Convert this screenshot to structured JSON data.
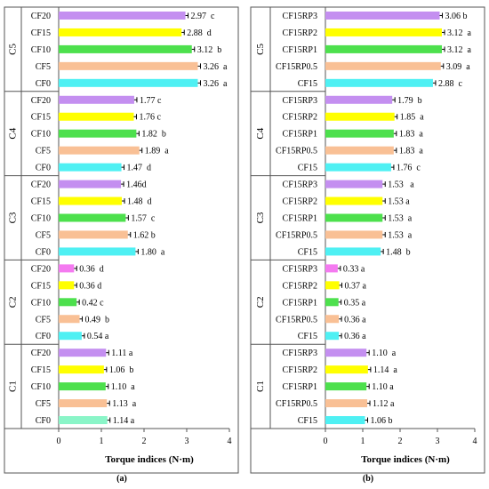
{
  "chart_data": [
    {
      "type": "bar",
      "orientation": "horizontal",
      "panel_label": "(a)",
      "xlabel": "Torque indices (N·m)",
      "xlim": [
        0,
        4
      ],
      "xticks": [
        "0",
        "1",
        "2",
        "3",
        "4"
      ],
      "groups": [
        "C5",
        "C4",
        "C3",
        "C2",
        "C1"
      ],
      "bars": [
        {
          "group": "C5",
          "category": "CF20",
          "value": 2.97,
          "label": "2.97  c",
          "color": "#c48ff0"
        },
        {
          "group": "C5",
          "category": "CF15",
          "value": 2.88,
          "label": "2.88  d",
          "color": "#ffff00"
        },
        {
          "group": "C5",
          "category": "CF10",
          "value": 3.12,
          "label": "3.12  b",
          "color": "#4de04d"
        },
        {
          "group": "C5",
          "category": "CF5",
          "value": 3.26,
          "label": "3.26  a",
          "color": "#f9c095"
        },
        {
          "group": "C5",
          "category": "CF0",
          "value": 3.26,
          "label": "3.26  a",
          "color": "#4ff0f3"
        },
        {
          "group": "C4",
          "category": "CF20",
          "value": 1.77,
          "label": "1.77 c",
          "color": "#c48ff0"
        },
        {
          "group": "C4",
          "category": "CF15",
          "value": 1.76,
          "label": "1.76 c",
          "color": "#ffff00"
        },
        {
          "group": "C4",
          "category": "CF10",
          "value": 1.82,
          "label": "1.82  b",
          "color": "#4de04d"
        },
        {
          "group": "C4",
          "category": "CF5",
          "value": 1.89,
          "label": "1.89  a",
          "color": "#f9c095"
        },
        {
          "group": "C4",
          "category": "CF0",
          "value": 1.47,
          "label": "1.47  d",
          "color": "#4ff0f3"
        },
        {
          "group": "C3",
          "category": "CF20",
          "value": 1.46,
          "label": "1.46d",
          "color": "#c48ff0"
        },
        {
          "group": "C3",
          "category": "CF15",
          "value": 1.48,
          "label": "1.48  d",
          "color": "#ffff00"
        },
        {
          "group": "C3",
          "category": "CF10",
          "value": 1.57,
          "label": "1.57  c",
          "color": "#4de04d"
        },
        {
          "group": "C3",
          "category": "CF5",
          "value": 1.62,
          "label": "1.62 b",
          "color": "#f9c095"
        },
        {
          "group": "C3",
          "category": "CF0",
          "value": 1.8,
          "label": "1.80  a",
          "color": "#4ff0f3"
        },
        {
          "group": "C2",
          "category": "CF20",
          "value": 0.36,
          "label": "0.36  d",
          "color": "#f47af0"
        },
        {
          "group": "C2",
          "category": "CF15",
          "value": 0.36,
          "label": "0.36 d",
          "color": "#ffff00"
        },
        {
          "group": "C2",
          "category": "CF10",
          "value": 0.42,
          "label": "0.42 c",
          "color": "#4de04d"
        },
        {
          "group": "C2",
          "category": "CF5",
          "value": 0.49,
          "label": "0.49  b",
          "color": "#f9c095"
        },
        {
          "group": "C2",
          "category": "CF0",
          "value": 0.54,
          "label": "0.54 a",
          "color": "#4ff0f3"
        },
        {
          "group": "C1",
          "category": "CF20",
          "value": 1.11,
          "label": "1.11 a",
          "color": "#c48ff0"
        },
        {
          "group": "C1",
          "category": "CF15",
          "value": 1.06,
          "label": "1.06  b",
          "color": "#ffff00"
        },
        {
          "group": "C1",
          "category": "CF10",
          "value": 1.1,
          "label": "1.10  a",
          "color": "#4de04d"
        },
        {
          "group": "C1",
          "category": "CF5",
          "value": 1.13,
          "label": "1.13  a",
          "color": "#f9c095"
        },
        {
          "group": "C1",
          "category": "CF0",
          "value": 1.14,
          "label": "1.14 a",
          "color": "#8af5c8"
        }
      ]
    },
    {
      "type": "bar",
      "orientation": "horizontal",
      "panel_label": "(b)",
      "xlabel": "Torque indices (N·m)",
      "xlim": [
        0,
        4
      ],
      "xticks": [
        "0",
        "1",
        "2",
        "3",
        "4"
      ],
      "groups": [
        "C5",
        "C4",
        "C3",
        "C2",
        "C1"
      ],
      "bars": [
        {
          "group": "C5",
          "category": "CF15RP3",
          "value": 3.06,
          "label": "3.06 b",
          "color": "#c48ff0"
        },
        {
          "group": "C5",
          "category": "CF15RP2",
          "value": 3.12,
          "label": "3.12  a",
          "color": "#ffff00"
        },
        {
          "group": "C5",
          "category": "CF15RP1",
          "value": 3.12,
          "label": "3.12  a",
          "color": "#4de04d"
        },
        {
          "group": "C5",
          "category": "CF15RP0.5",
          "value": 3.09,
          "label": "3.09  a",
          "color": "#f9c095"
        },
        {
          "group": "C5",
          "category": "CF15",
          "value": 2.88,
          "label": "2.88  c",
          "color": "#4ff0f3"
        },
        {
          "group": "C4",
          "category": "CF15RP3",
          "value": 1.79,
          "label": "1.79  b",
          "color": "#c48ff0"
        },
        {
          "group": "C4",
          "category": "CF15RP2",
          "value": 1.85,
          "label": "1.85  a",
          "color": "#ffff00"
        },
        {
          "group": "C4",
          "category": "CF15RP1",
          "value": 1.83,
          "label": "1.83  a",
          "color": "#4de04d"
        },
        {
          "group": "C4",
          "category": "CF15RP0.5",
          "value": 1.83,
          "label": "1.83  a",
          "color": "#f9c095"
        },
        {
          "group": "C4",
          "category": "CF15",
          "value": 1.76,
          "label": "1.76  c",
          "color": "#4ff0f3"
        },
        {
          "group": "C3",
          "category": "CF15RP3",
          "value": 1.53,
          "label": "1.53   a",
          "color": "#c48ff0"
        },
        {
          "group": "C3",
          "category": "CF15RP2",
          "value": 1.53,
          "label": "1.53 a",
          "color": "#ffff00"
        },
        {
          "group": "C3",
          "category": "CF15RP1",
          "value": 1.53,
          "label": "1.53  a",
          "color": "#4de04d"
        },
        {
          "group": "C3",
          "category": "CF15RP0.5",
          "value": 1.53,
          "label": "1.53  a",
          "color": "#f9c095"
        },
        {
          "group": "C3",
          "category": "CF15",
          "value": 1.48,
          "label": "1.48  b",
          "color": "#4ff0f3"
        },
        {
          "group": "C2",
          "category": "CF15RP3",
          "value": 0.33,
          "label": "0.33 a",
          "color": "#f47af0"
        },
        {
          "group": "C2",
          "category": "CF15RP2",
          "value": 0.37,
          "label": "0.37 a",
          "color": "#ffff00"
        },
        {
          "group": "C2",
          "category": "CF15RP1",
          "value": 0.35,
          "label": "0.35 a",
          "color": "#4de04d"
        },
        {
          "group": "C2",
          "category": "CF15RP0.5",
          "value": 0.36,
          "label": "0.36 a",
          "color": "#f9c095"
        },
        {
          "group": "C2",
          "category": "CF15",
          "value": 0.36,
          "label": "0.36 a",
          "color": "#4ff0f3"
        },
        {
          "group": "C1",
          "category": "CF15RP3",
          "value": 1.1,
          "label": "1.10  a",
          "color": "#c48ff0"
        },
        {
          "group": "C1",
          "category": "CF15RP2",
          "value": 1.14,
          "label": "1.14  a",
          "color": "#ffff00"
        },
        {
          "group": "C1",
          "category": "CF15RP1",
          "value": 1.1,
          "label": "1.10 a",
          "color": "#4de04d"
        },
        {
          "group": "C1",
          "category": "CF15RP0.5",
          "value": 1.12,
          "label": "1.12 a",
          "color": "#f9c095"
        },
        {
          "group": "C1",
          "category": "CF15",
          "value": 1.06,
          "label": "1.06 b",
          "color": "#4ff0f3"
        }
      ]
    }
  ]
}
